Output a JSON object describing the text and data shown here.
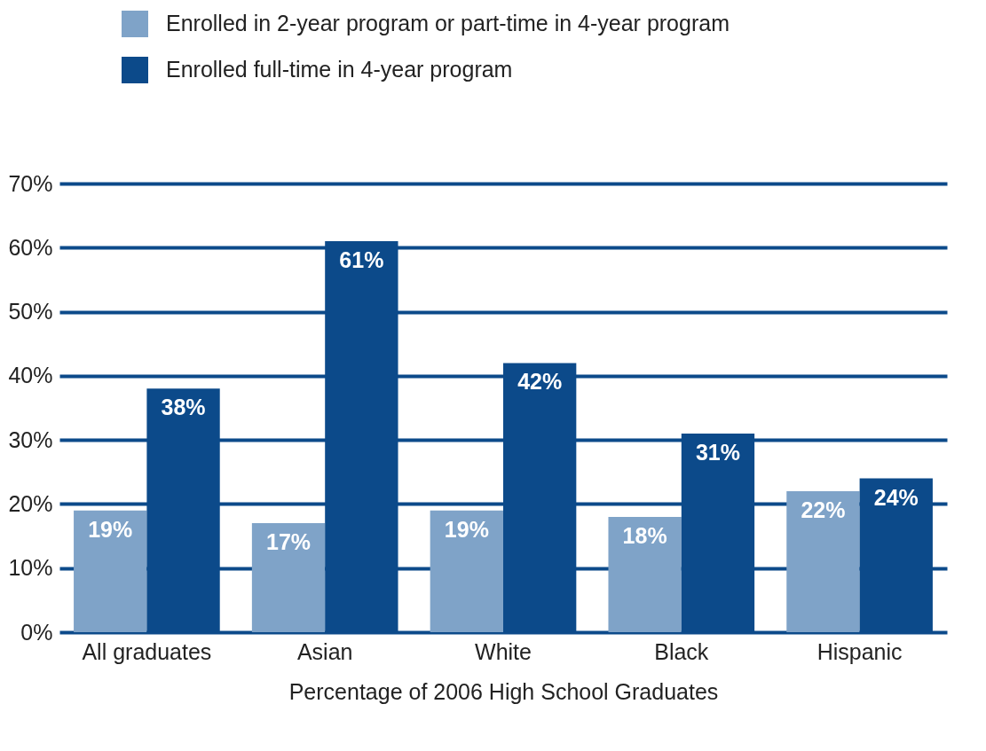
{
  "chart_data": {
    "type": "bar",
    "xlabel": "Percentage of 2006 High School Graduates",
    "categories": [
      "All graduates",
      "Asian",
      "White",
      "Black",
      "Hispanic"
    ],
    "series": [
      {
        "name": "Enrolled in 2-year program or part-time in 4-year program",
        "color": "#7fa3c8",
        "values": [
          19,
          17,
          19,
          18,
          22
        ],
        "value_labels": [
          "19%",
          "17%",
          "19%",
          "18%",
          "22%"
        ]
      },
      {
        "name": "Enrolled full-time in 4-year program",
        "color": "#0c4a8a",
        "values": [
          38,
          61,
          42,
          31,
          24
        ],
        "value_labels": [
          "38%",
          "61%",
          "42%",
          "31%",
          "24%"
        ]
      }
    ],
    "ylim": [
      0,
      70
    ],
    "yticks": [
      {
        "value": 0,
        "label": "0%"
      },
      {
        "value": 10,
        "label": "10%"
      },
      {
        "value": 20,
        "label": "20%"
      },
      {
        "value": 30,
        "label": "30%"
      },
      {
        "value": 40,
        "label": "40%"
      },
      {
        "value": 50,
        "label": "50%"
      },
      {
        "value": 60,
        "label": "60%"
      },
      {
        "value": 70,
        "label": "70%"
      }
    ],
    "grid": "y",
    "legend": "top left"
  }
}
